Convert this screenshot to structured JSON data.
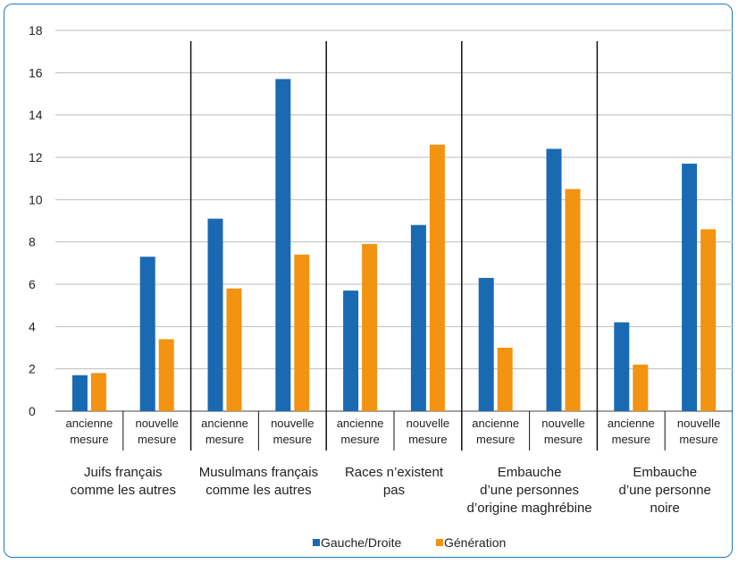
{
  "chart_data": {
    "type": "bar",
    "y_ticks": [
      "0",
      "2",
      "4",
      "6",
      "8",
      "10",
      "12",
      "14",
      "16",
      "18"
    ],
    "ylim": [
      0,
      18
    ],
    "grid": true,
    "legend_position": "bottom",
    "subcategory_labels": [
      [
        "ancienne",
        "mesure"
      ],
      [
        "nouvelle",
        "mesure"
      ]
    ],
    "groups": [
      {
        "label_lines": [
          "Juifs français",
          "comme les autres"
        ]
      },
      {
        "label_lines": [
          "Musulmans français",
          "comme les autres"
        ]
      },
      {
        "label_lines": [
          "Races n’existent",
          "pas"
        ]
      },
      {
        "label_lines": [
          "Embauche",
          "d’une personnes",
          "d’origine maghrébine"
        ]
      },
      {
        "label_lines": [
          "Embauche",
          "d’une personne",
          "noire"
        ]
      }
    ],
    "series": [
      {
        "name": "Gauche/Droite",
        "color": "#1a69b3",
        "values": [
          1.7,
          7.3,
          9.1,
          15.7,
          5.7,
          8.8,
          6.3,
          12.4,
          4.2,
          11.7
        ]
      },
      {
        "name": "Génération",
        "color": "#f29312",
        "values": [
          1.8,
          3.4,
          5.8,
          7.4,
          7.9,
          12.6,
          3.0,
          10.5,
          2.2,
          8.6
        ]
      }
    ]
  }
}
